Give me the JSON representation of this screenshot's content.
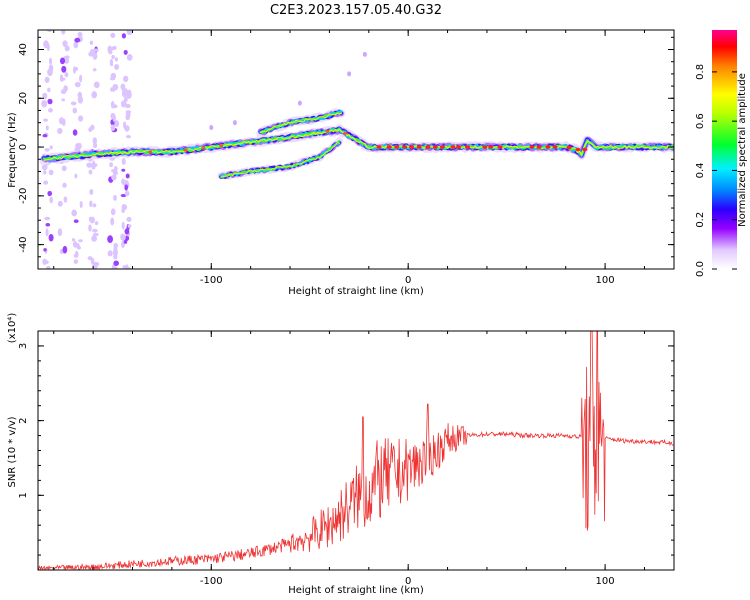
{
  "title": "C2E3.2023.157.05.40.G32",
  "chart_data": [
    {
      "type": "heatmap",
      "xlabel": "Height of straight line (km)",
      "ylabel": "Frequency (Hz)",
      "xlim": [
        -188,
        135
      ],
      "ylim": [
        -50,
        48
      ],
      "xticks": [
        -100,
        0,
        100
      ],
      "yticks": [
        -40,
        -20,
        0,
        20,
        40
      ],
      "colorbar": {
        "label": "Normalized spectral amplitude",
        "range": [
          0.0,
          0.97
        ],
        "ticks": [
          "0.0",
          "0.2",
          "0.4",
          "0.6",
          "0.8"
        ]
      },
      "features": [
        {
          "name": "main",
          "x": [
            -185,
            -160,
            -140,
            -120,
            -100,
            -80,
            -60,
            -45,
            -35,
            -20,
            0,
            40,
            80,
            85,
            88,
            91,
            95,
            135
          ],
          "y": [
            -5,
            -3,
            -2,
            -2,
            0,
            2,
            4,
            6,
            7,
            0,
            0,
            0,
            0,
            -1,
            -3,
            3,
            0,
            0
          ]
        },
        {
          "name": "upper",
          "x": [
            -75,
            -60,
            -45,
            -35
          ],
          "y": [
            6,
            10,
            12,
            14
          ]
        },
        {
          "name": "lower",
          "x": [
            -95,
            -80,
            -60,
            -45,
            -35
          ],
          "y": [
            -12,
            -10,
            -8,
            -4,
            2
          ]
        }
      ]
    },
    {
      "type": "line",
      "xlabel": "Height of straight line (km)",
      "ylabel": "SNR (10 * v/v)",
      "yscale_label": "(x10⁴)",
      "xlim": [
        -188,
        135
      ],
      "ylim": [
        0,
        3.2
      ],
      "xticks": [
        -100,
        0,
        100
      ],
      "yticks": [
        1,
        2,
        3
      ],
      "color": "#ee3333",
      "series": [
        {
          "x": [
            -188,
            -160,
            -140,
            -120,
            -100,
            -80,
            -60,
            -50,
            -40,
            -30,
            -25,
            -20,
            -15,
            -10,
            0,
            10,
            15,
            20,
            30,
            40,
            50,
            60,
            70,
            80,
            88,
            92,
            94,
            96,
            98,
            100,
            110,
            120,
            135
          ],
          "y": [
            0.02,
            0.04,
            0.08,
            0.12,
            0.15,
            0.22,
            0.35,
            0.45,
            0.6,
            0.85,
            1.0,
            1.05,
            1.2,
            1.25,
            1.35,
            1.5,
            1.6,
            1.75,
            1.8,
            1.82,
            1.82,
            1.8,
            1.8,
            1.8,
            1.78,
            1.5,
            1.8,
            1.5,
            1.74,
            1.76,
            1.73,
            1.72,
            1.7
          ]
        }
      ],
      "spikes": [
        {
          "x": -23,
          "y": 2.05
        },
        {
          "x": 10,
          "y": 2.22
        },
        {
          "x": 93,
          "y": 3.2
        },
        {
          "x": 96,
          "y": 3.2
        }
      ]
    }
  ]
}
